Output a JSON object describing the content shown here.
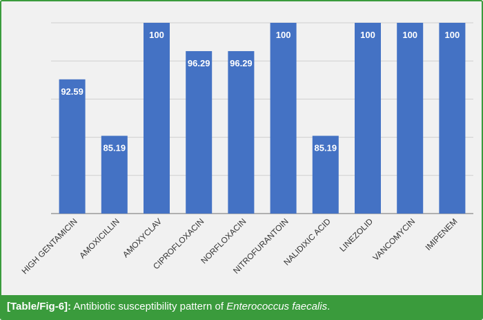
{
  "chart_data": {
    "type": "bar",
    "categories": [
      "HIGH GENTAMICIN",
      "AMOXICILLIN",
      "AMOXYCLAV",
      "CIPROFLOXACIN",
      "NORFLOXACIN",
      "NITROFURANTOIN",
      "NALIDIXIC ACID",
      "LINEZOLID",
      "VANCOMYCIN",
      "IMIPENEM"
    ],
    "values": [
      92.59,
      85.19,
      100,
      96.29,
      96.29,
      100,
      85.19,
      100,
      100,
      100
    ],
    "data_labels": [
      "92.59",
      "85.19",
      "100",
      "96.29",
      "96.29",
      "100",
      "85.19",
      "100",
      "100",
      "100"
    ],
    "ylim": [
      75,
      100
    ],
    "gridlines": [
      75,
      80,
      85,
      90,
      95,
      100
    ],
    "grid": true,
    "bar_color": "#4472c4",
    "title": "",
    "xlabel": "",
    "ylabel": ""
  },
  "caption": {
    "ref": "[Table/Fig-6]:",
    "text_before": " Antibiotic susceptibility pattern of ",
    "species": "Enterococcus faecalis",
    "text_after": "."
  },
  "colors": {
    "frame": "#3a9b3c",
    "background": "#f1f1f1"
  }
}
